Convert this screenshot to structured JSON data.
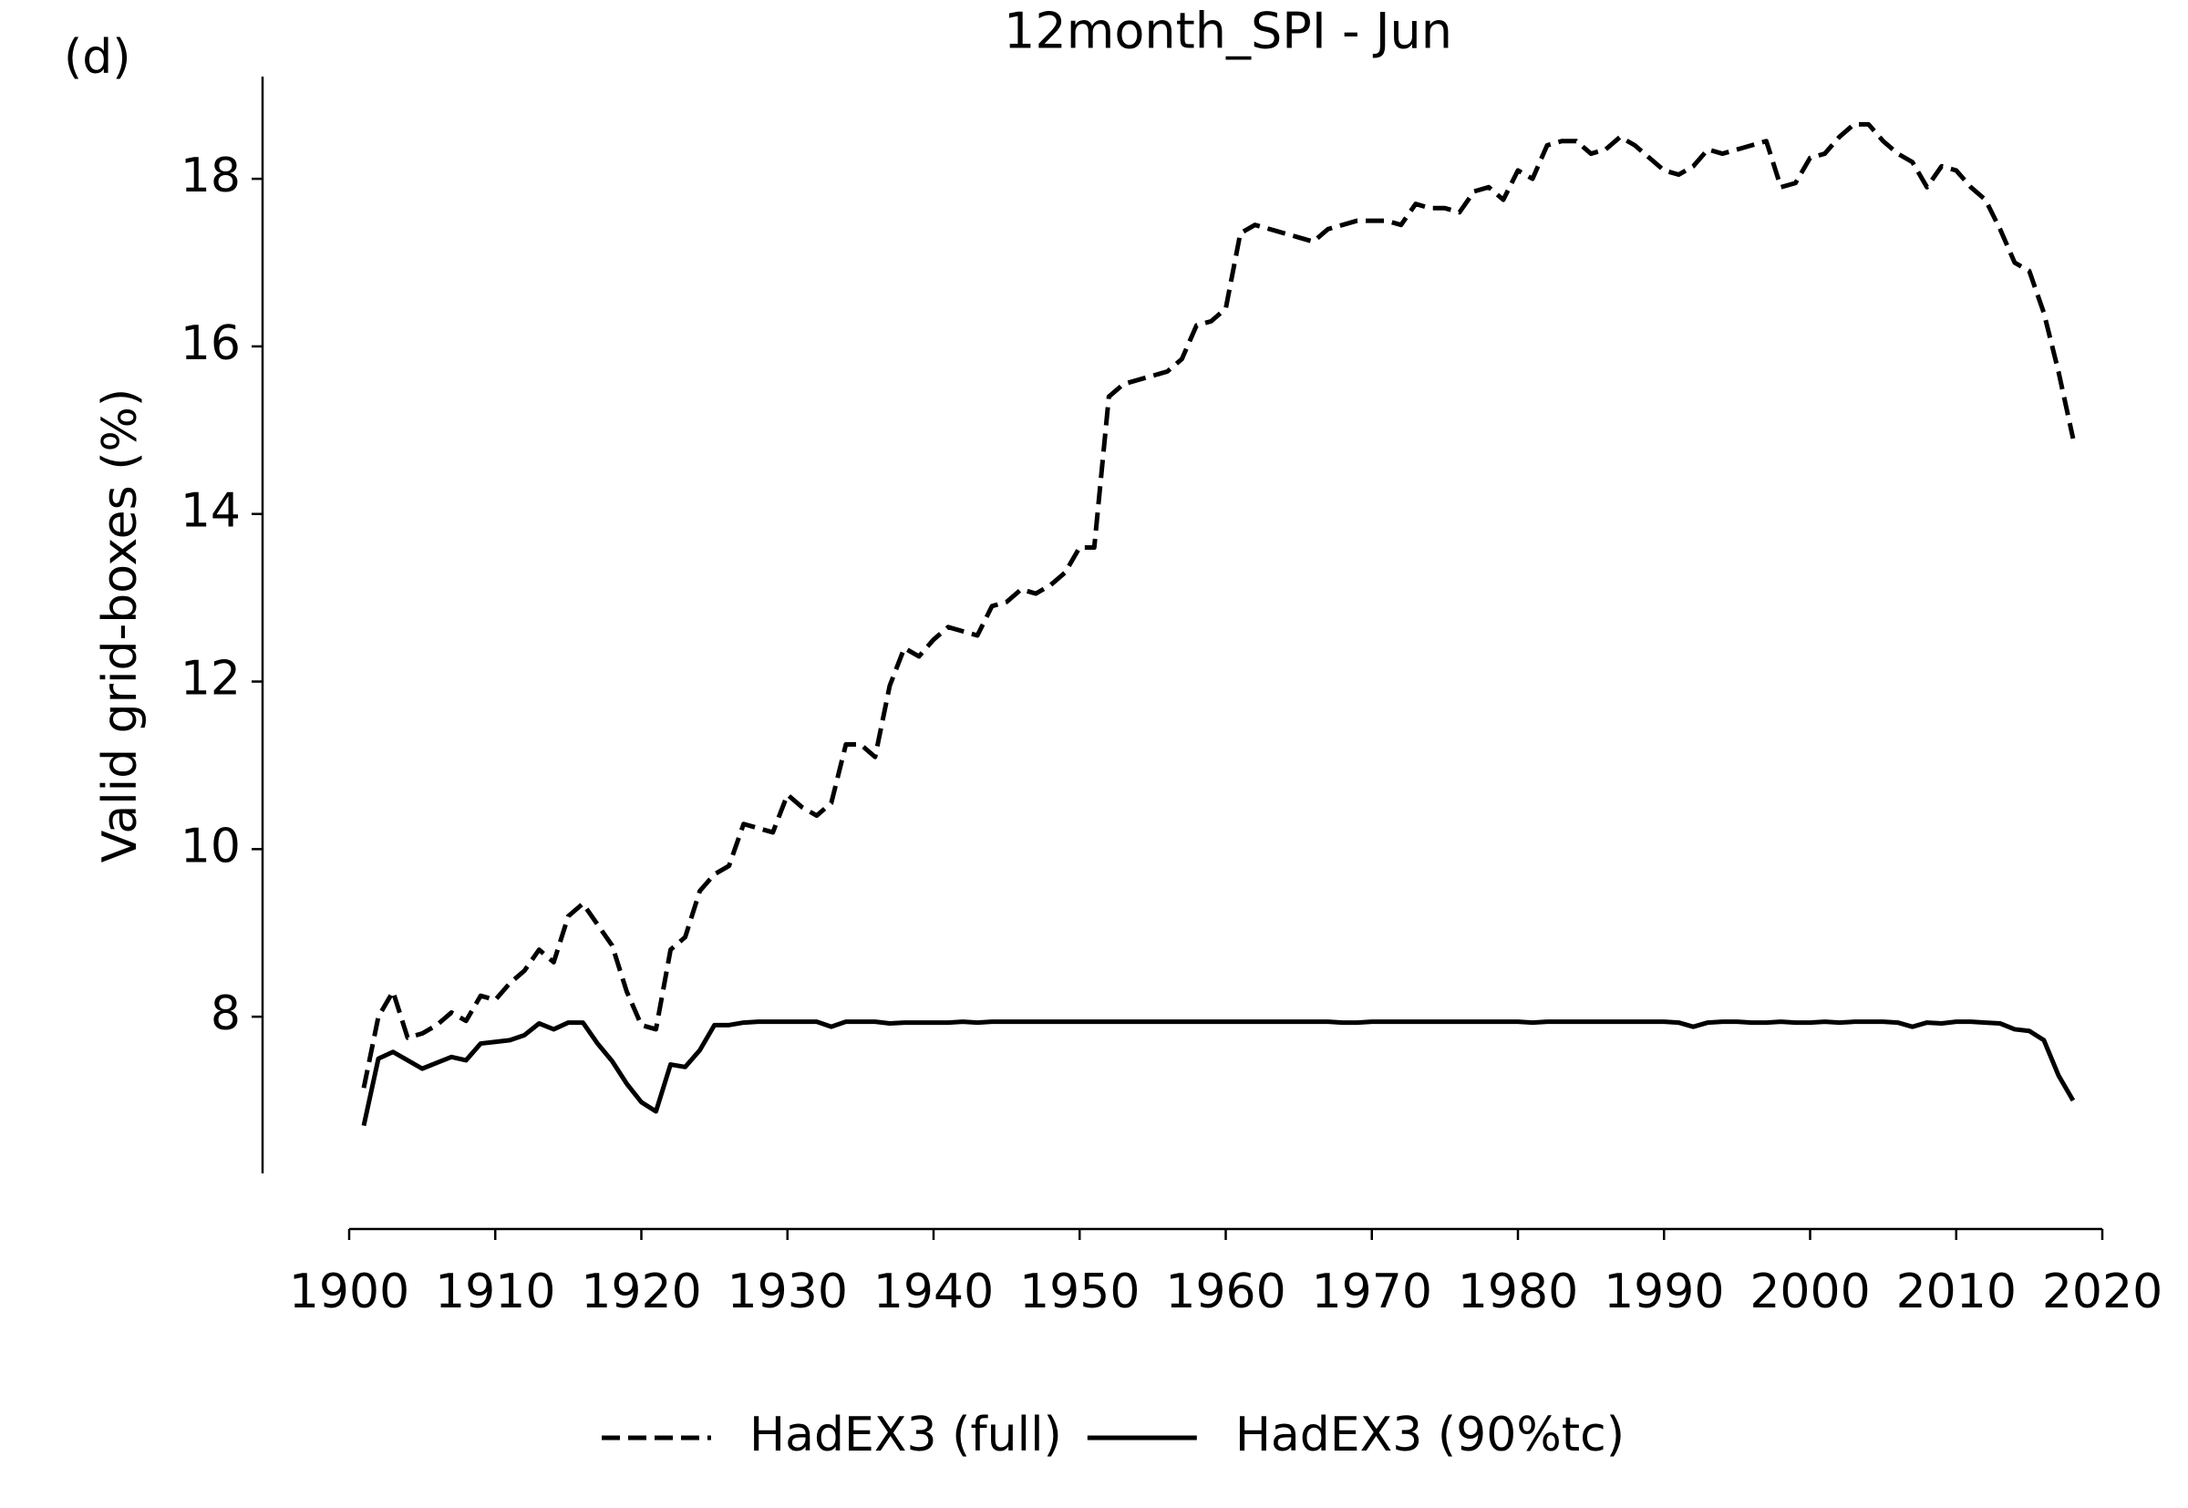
{
  "chart_data": {
    "type": "line",
    "title": "12month_SPI - Jun",
    "panel_label": "(d)",
    "y_label": "Valid grid-boxes (%)",
    "xlim": [
      1900,
      2020
    ],
    "xticks": [
      1900,
      1910,
      1920,
      1930,
      1940,
      1950,
      1960,
      1970,
      1980,
      1990,
      2000,
      2010,
      2020
    ],
    "ylim": [
      6.13,
      19.22
    ],
    "yticks": [
      8,
      10,
      12,
      14,
      16,
      18
    ],
    "grid": false,
    "legend_position": "bottom",
    "x": [
      1901,
      1902,
      1903,
      1904,
      1905,
      1906,
      1907,
      1908,
      1909,
      1910,
      1911,
      1912,
      1913,
      1914,
      1915,
      1916,
      1917,
      1918,
      1919,
      1920,
      1921,
      1922,
      1923,
      1924,
      1925,
      1926,
      1927,
      1928,
      1929,
      1930,
      1931,
      1932,
      1933,
      1934,
      1935,
      1936,
      1937,
      1938,
      1939,
      1940,
      1941,
      1942,
      1943,
      1944,
      1945,
      1946,
      1947,
      1948,
      1949,
      1950,
      1951,
      1952,
      1953,
      1954,
      1955,
      1956,
      1957,
      1958,
      1959,
      1960,
      1961,
      1962,
      1963,
      1964,
      1965,
      1966,
      1967,
      1968,
      1969,
      1970,
      1971,
      1972,
      1973,
      1974,
      1975,
      1976,
      1977,
      1978,
      1979,
      1980,
      1981,
      1982,
      1983,
      1984,
      1985,
      1986,
      1987,
      1988,
      1989,
      1990,
      1991,
      1992,
      1993,
      1994,
      1995,
      1996,
      1997,
      1998,
      1999,
      2000,
      2001,
      2002,
      2003,
      2004,
      2005,
      2006,
      2007,
      2008,
      2009,
      2010,
      2011,
      2012,
      2013,
      2014,
      2015,
      2016,
      2017,
      2018
    ],
    "series": [
      {
        "name": "HadEX3 (full)",
        "color": "#000000",
        "linestyle": "dashed",
        "values": [
          7.15,
          8.0,
          8.3,
          7.75,
          7.8,
          7.9,
          8.05,
          7.95,
          8.25,
          8.2,
          8.4,
          8.55,
          8.8,
          8.65,
          9.2,
          9.35,
          9.1,
          8.85,
          8.3,
          7.9,
          7.85,
          8.8,
          8.95,
          9.5,
          9.7,
          9.8,
          10.3,
          10.25,
          10.2,
          10.65,
          10.5,
          10.4,
          10.55,
          11.25,
          11.25,
          11.1,
          11.95,
          12.4,
          12.3,
          12.5,
          12.65,
          12.6,
          12.55,
          12.9,
          12.95,
          13.1,
          13.05,
          13.15,
          13.3,
          13.6,
          13.6,
          15.4,
          15.55,
          15.6,
          15.65,
          15.7,
          15.85,
          16.25,
          16.3,
          16.45,
          17.35,
          17.45,
          17.4,
          17.35,
          17.3,
          17.25,
          17.4,
          17.45,
          17.5,
          17.5,
          17.5,
          17.45,
          17.7,
          17.65,
          17.65,
          17.6,
          17.85,
          17.9,
          17.75,
          18.1,
          18.0,
          18.4,
          18.45,
          18.45,
          18.3,
          18.35,
          18.5,
          18.4,
          18.25,
          18.1,
          18.05,
          18.15,
          18.35,
          18.3,
          18.35,
          18.4,
          18.45,
          17.9,
          17.95,
          18.25,
          18.3,
          18.5,
          18.65,
          18.65,
          18.45,
          18.3,
          18.2,
          17.9,
          18.15,
          18.1,
          17.9,
          17.75,
          17.4,
          17.0,
          16.9,
          16.4,
          15.7,
          14.9
        ]
      },
      {
        "name": "HadEX3 (90%tc)",
        "color": "#000000",
        "linestyle": "solid",
        "values": [
          6.7,
          7.5,
          7.58,
          7.48,
          7.38,
          7.45,
          7.52,
          7.48,
          7.68,
          7.7,
          7.72,
          7.78,
          7.92,
          7.85,
          7.93,
          7.93,
          7.68,
          7.47,
          7.2,
          6.98,
          6.87,
          7.43,
          7.4,
          7.6,
          7.9,
          7.9,
          7.93,
          7.94,
          7.94,
          7.94,
          7.94,
          7.94,
          7.88,
          7.94,
          7.94,
          7.94,
          7.92,
          7.93,
          7.93,
          7.93,
          7.93,
          7.94,
          7.93,
          7.94,
          7.94,
          7.94,
          7.94,
          7.94,
          7.94,
          7.94,
          7.94,
          7.94,
          7.94,
          7.94,
          7.94,
          7.94,
          7.94,
          7.94,
          7.94,
          7.94,
          7.94,
          7.94,
          7.94,
          7.94,
          7.94,
          7.94,
          7.94,
          7.93,
          7.93,
          7.94,
          7.94,
          7.94,
          7.94,
          7.94,
          7.94,
          7.94,
          7.94,
          7.94,
          7.94,
          7.94,
          7.93,
          7.94,
          7.94,
          7.94,
          7.94,
          7.94,
          7.94,
          7.94,
          7.94,
          7.94,
          7.93,
          7.88,
          7.93,
          7.94,
          7.94,
          7.93,
          7.93,
          7.94,
          7.93,
          7.93,
          7.94,
          7.93,
          7.94,
          7.94,
          7.94,
          7.93,
          7.88,
          7.93,
          7.92,
          7.94,
          7.94,
          7.93,
          7.92,
          7.85,
          7.83,
          7.72,
          7.3,
          7.0
        ]
      }
    ]
  }
}
